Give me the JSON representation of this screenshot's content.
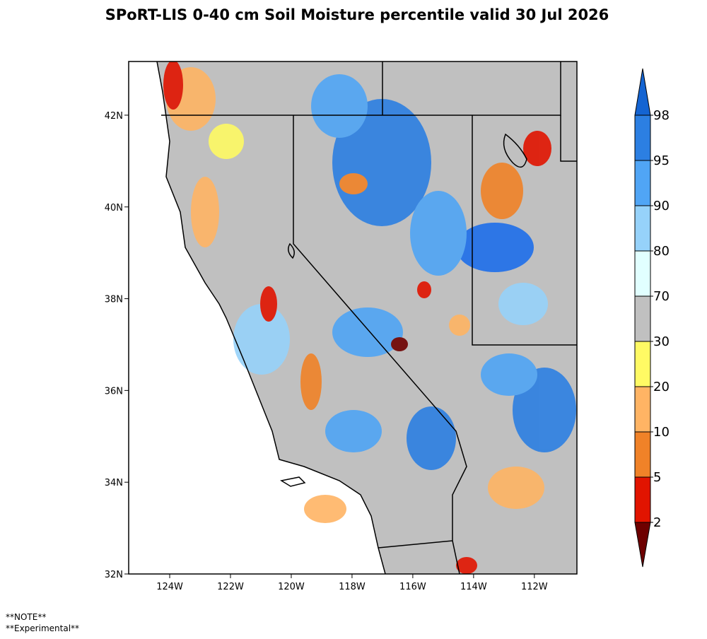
{
  "title": "SPoRT-LIS 0-40 cm Soil Moisture percentile valid 30 Jul 2026",
  "map": {
    "xlim": [
      -125.35,
      -110.6
    ],
    "ylim": [
      32,
      43.17
    ],
    "lon_ticks": [
      {
        "value": -124,
        "label": "124W"
      },
      {
        "value": -122,
        "label": "122W"
      },
      {
        "value": -120,
        "label": "120W"
      },
      {
        "value": -118,
        "label": "118W"
      },
      {
        "value": -116,
        "label": "116W"
      },
      {
        "value": -114,
        "label": "114W"
      },
      {
        "value": -112,
        "label": "112W"
      }
    ],
    "lat_ticks": [
      {
        "value": 32,
        "label": "32N"
      },
      {
        "value": 34,
        "label": "34N"
      },
      {
        "value": 36,
        "label": "36N"
      },
      {
        "value": 38,
        "label": "38N"
      },
      {
        "value": 40,
        "label": "40N"
      },
      {
        "value": 42,
        "label": "42N"
      }
    ]
  },
  "colorbar": {
    "levels": [
      2,
      5,
      10,
      20,
      30,
      70,
      80,
      90,
      95,
      98
    ],
    "colors": [
      "#6e0000",
      "#e11400",
      "#f08228",
      "#ffb464",
      "#fffa64",
      "#c0c0c0",
      "#e1ffff",
      "#96d2fa",
      "#50a5f5",
      "#2c7fe2",
      "#1464d2"
    ]
  },
  "notes": [
    "**NOTE**",
    "**Experimental**"
  ]
}
